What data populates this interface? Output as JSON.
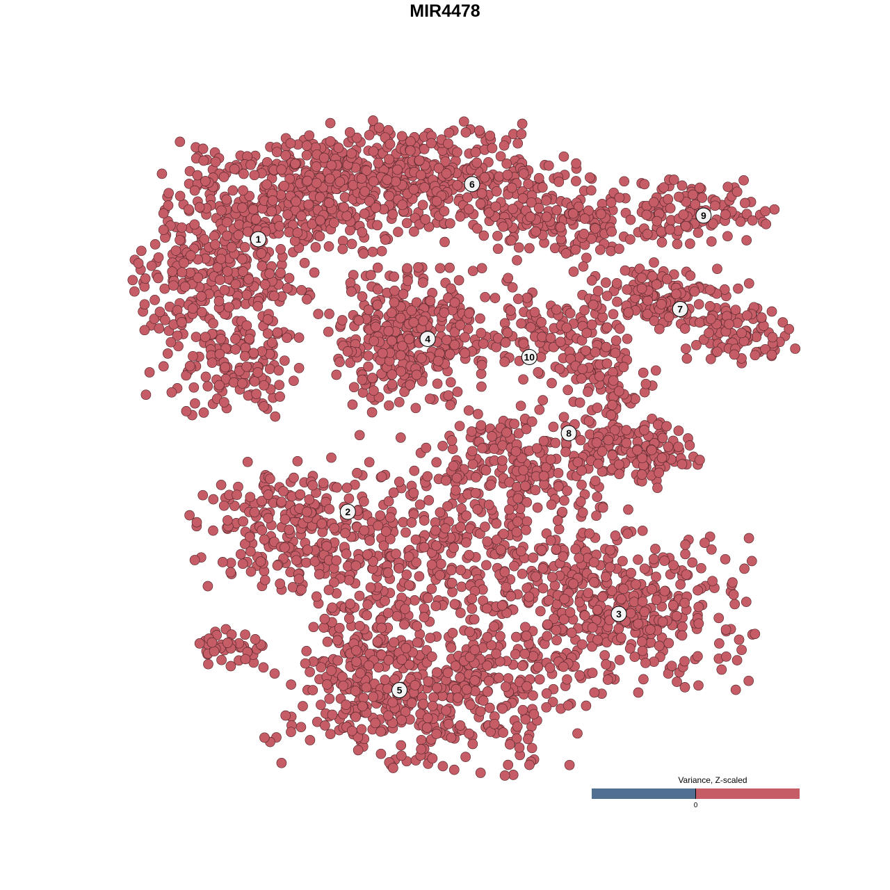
{
  "chart_data": {
    "type": "scatter",
    "title": "MIR4478",
    "xlabel": "",
    "ylabel": "",
    "xlim": [
      -40,
      40
    ],
    "ylim": [
      -40,
      40
    ],
    "grid": false,
    "axes_visible": false,
    "point_color": "#C55C66",
    "point_edge_color": "#5A2A2E",
    "cluster_labels": [
      {
        "label": "1",
        "x": -25.3,
        "y": 26.2
      },
      {
        "label": "2",
        "x": -14.2,
        "y": -8.5
      },
      {
        "label": "3",
        "x": 19.4,
        "y": -21.5
      },
      {
        "label": "4",
        "x": -4.3,
        "y": 13.5
      },
      {
        "label": "5",
        "x": -7.8,
        "y": -31.2
      },
      {
        "label": "6",
        "x": 1.2,
        "y": 33.2
      },
      {
        "label": "7",
        "x": 27.0,
        "y": 17.3
      },
      {
        "label": "8",
        "x": 13.2,
        "y": 1.5
      },
      {
        "label": "9",
        "x": 29.9,
        "y": 29.2
      },
      {
        "label": "10",
        "x": 8.3,
        "y": 11.2
      }
    ],
    "clusters": [
      {
        "cluster": "1",
        "blobs": [
          [
            -28.9,
            21.2,
            5.2,
            8.0,
            350
          ],
          [
            -18.5,
            31.9,
            8.6,
            4.0,
            350
          ],
          [
            -27.2,
            8.8,
            3.4,
            2.7,
            60
          ],
          [
            -36.6,
            21.2,
            2.2,
            3.5,
            40
          ]
        ]
      },
      {
        "cluster": "6",
        "blobs": [
          [
            -5.6,
            34.5,
            7.8,
            3.1,
            300
          ],
          [
            8.2,
            30.1,
            5.2,
            3.5,
            150
          ],
          [
            15.9,
            27.4,
            2.6,
            2.2,
            40
          ]
        ]
      },
      {
        "cluster": "4",
        "blobs": [
          [
            -7.3,
            13.3,
            4.3,
            4.4,
            350
          ]
        ]
      },
      {
        "cluster": "10",
        "blobs": [
          [
            8.2,
            15.0,
            5.2,
            3.5,
            100
          ]
        ]
      },
      {
        "cluster": "7",
        "blobs": [
          [
            24.6,
            18.6,
            5.2,
            2.2,
            150
          ],
          [
            34.1,
            14.2,
            3.4,
            1.8,
            80
          ]
        ]
      },
      {
        "cluster": "9",
        "blobs": [
          [
            28.0,
            29.2,
            5.2,
            2.2,
            120
          ]
        ]
      },
      {
        "cluster": "8",
        "blobs": [
          [
            16.8,
            8.8,
            3.4,
            3.5,
            100
          ],
          [
            22.0,
            -0.9,
            3.4,
            2.2,
            120
          ],
          [
            8.2,
            -0.9,
            5.2,
            2.7,
            120
          ]
        ]
      },
      {
        "cluster": "2",
        "blobs": [
          [
            -21.1,
            -10.6,
            6.0,
            4.0,
            250
          ],
          [
            -28.0,
            -25.7,
            2.6,
            1.3,
            40
          ]
        ]
      },
      {
        "cluster": "3",
        "blobs": [
          [
            20.3,
            -21.2,
            7.8,
            4.9,
            350
          ]
        ]
      },
      {
        "cluster": "5",
        "blobs": [
          [
            -3.9,
            -32.7,
            9.5,
            4.4,
            400
          ],
          [
            -12.5,
            -24.8,
            3.4,
            5.3,
            120
          ],
          [
            1.3,
            -14.2,
            9.5,
            8.0,
            500
          ]
        ]
      }
    ],
    "legend": {
      "title": "Variance, Z-scaled",
      "tick_label": "0",
      "low_color": "#516F91",
      "high_color": "#C55C66",
      "placement": "bottom-right"
    }
  }
}
